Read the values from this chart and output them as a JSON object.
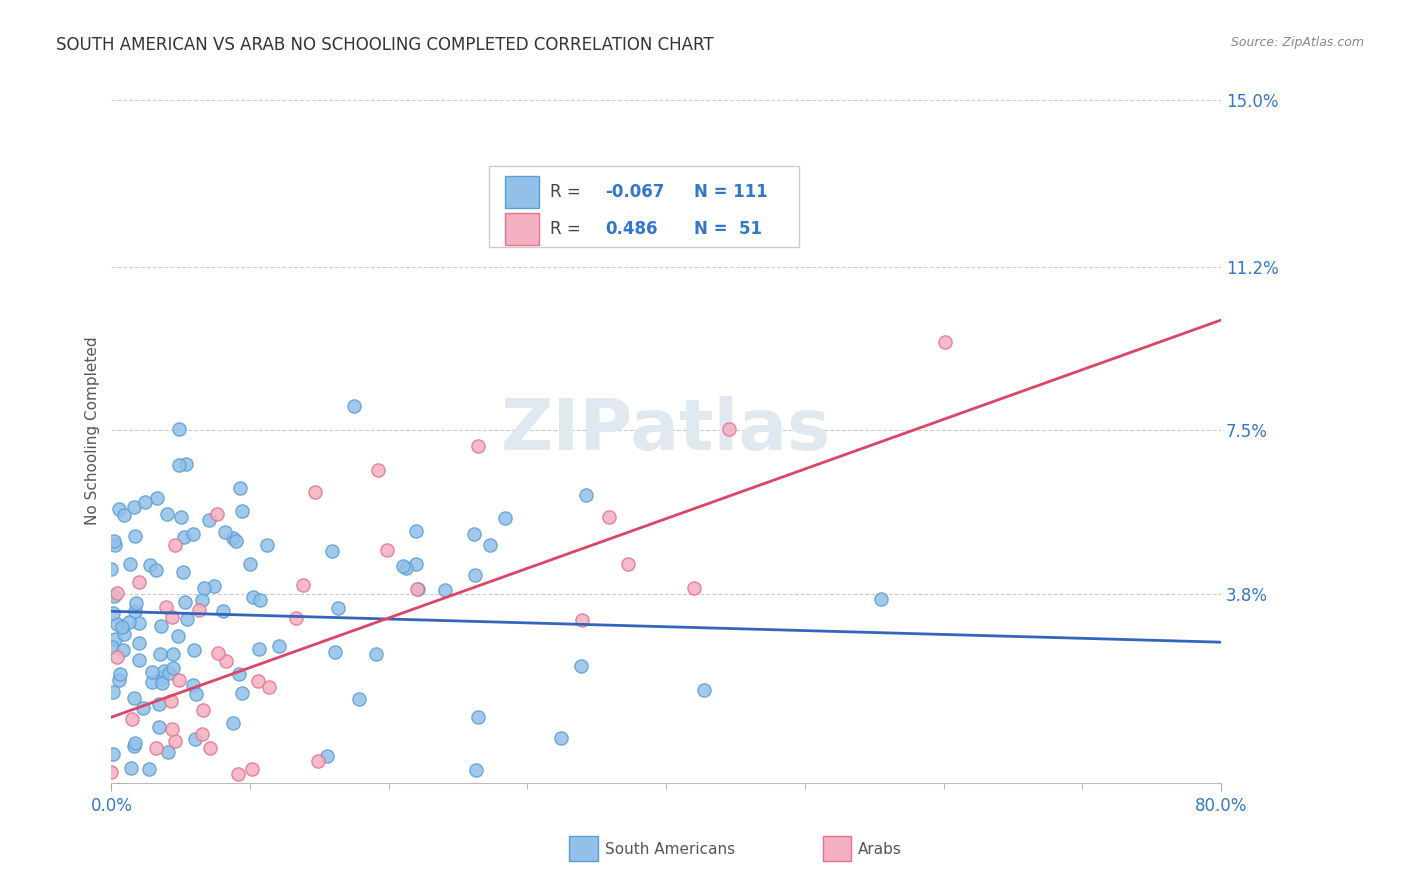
{
  "title": "SOUTH AMERICAN VS ARAB NO SCHOOLING COMPLETED CORRELATION CHART",
  "source_text": "Source: ZipAtlas.com",
  "ylabel": "No Schooling Completed",
  "xlim": [
    0.0,
    0.8
  ],
  "ylim": [
    -0.005,
    0.155
  ],
  "ytick_vals": [
    0.0,
    0.038,
    0.075,
    0.112,
    0.15
  ],
  "ytick_labels": [
    "",
    "3.8%",
    "7.5%",
    "11.2%",
    "15.0%"
  ],
  "xtick_vals": [
    0.0,
    0.8
  ],
  "xtick_labels": [
    "0.0%",
    "80.0%"
  ],
  "south_american_color": "#92c0e8",
  "south_american_edge": "#5a9fd4",
  "arab_color": "#f4b0c0",
  "arab_edge": "#e87090",
  "trend_blue": "#3366bb",
  "trend_pink": "#dd4466",
  "watermark": "ZIPatlas",
  "sa_n": 111,
  "arab_n": 51,
  "sa_r": -0.067,
  "arab_r": 0.486,
  "blue_trend_x0": 0.0,
  "blue_trend_y0": 0.034,
  "blue_trend_x1": 0.8,
  "blue_trend_y1": 0.027,
  "pink_trend_x0": 0.0,
  "pink_trend_y0": 0.01,
  "pink_trend_x1": 0.8,
  "pink_trend_y1": 0.1
}
